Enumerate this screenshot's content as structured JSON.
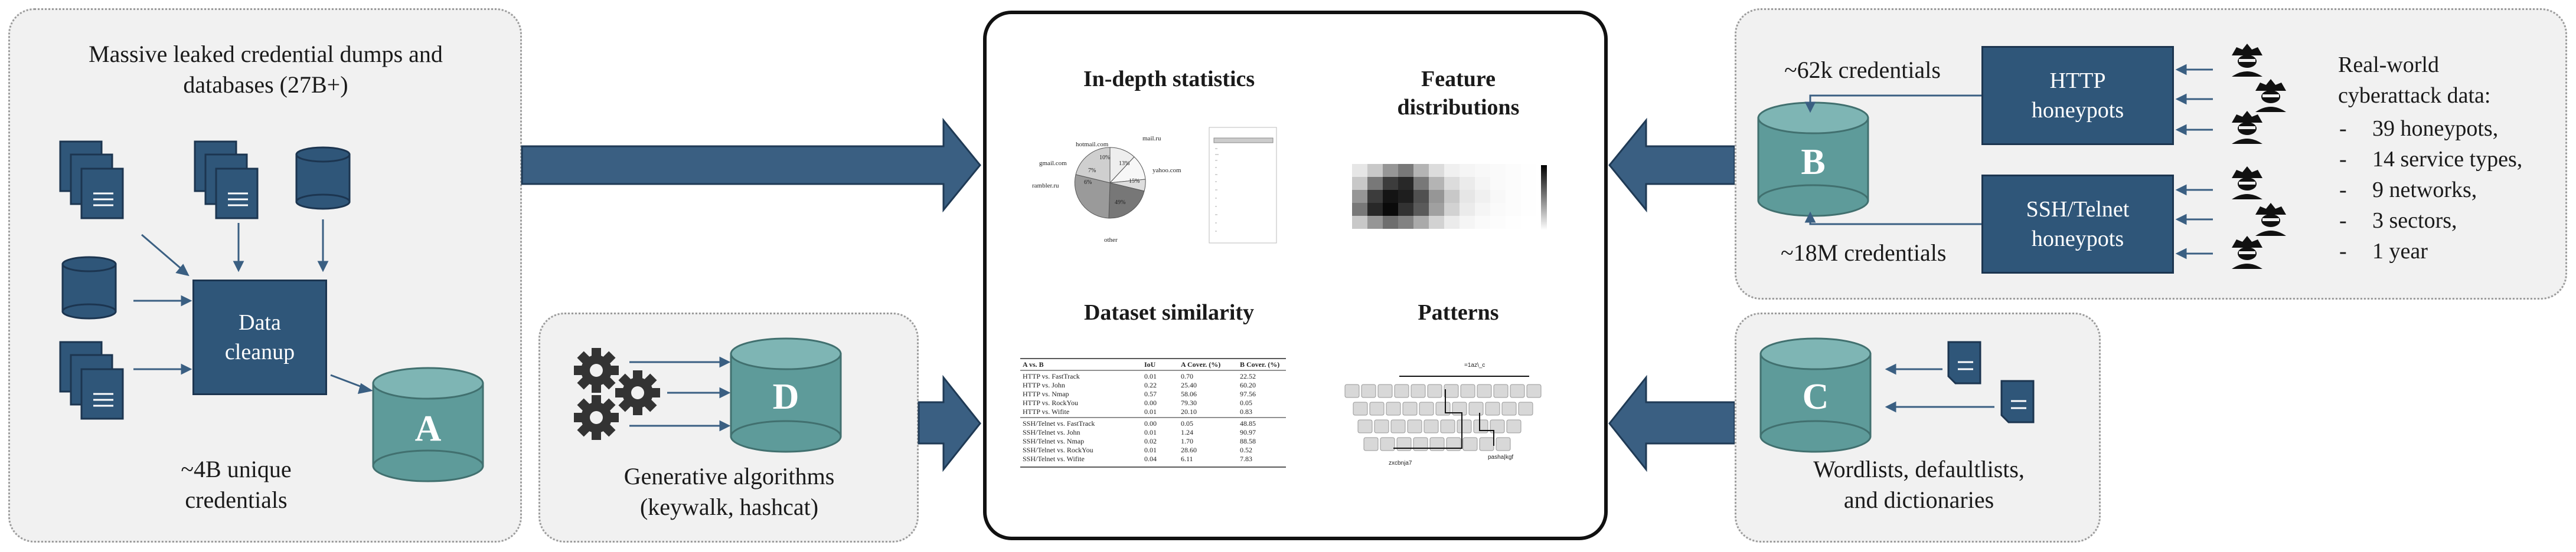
{
  "sources_panel": {
    "title_line1": "Massive leaked credential dumps and",
    "title_line2": "databases (27B+)",
    "cleanup_line1": "Data",
    "cleanup_line2": "cleanup",
    "db_letter": "A",
    "unique_line1": "~4B unique",
    "unique_line2": "credentials"
  },
  "generative_panel": {
    "db_letter": "D",
    "caption_line1": "Generative algorithms",
    "caption_line2": "(keywalk, hashcat)"
  },
  "center": {
    "stats_title": "In-depth statistics",
    "feature_title_line1": "Feature",
    "feature_title_line2": "distributions",
    "similarity_title": "Dataset similarity",
    "patterns_title": "Patterns",
    "pie_labels": [
      "hotmail.com",
      "mail.ru",
      "gmail.com",
      "yahoo.com",
      "rambler.ru",
      "other"
    ],
    "pie_pcts": [
      "10%",
      "13%",
      "7%",
      "15%",
      "6%",
      "49%"
    ],
    "table": {
      "headers": [
        "A vs. B",
        "IoU",
        "A Cover. (%)",
        "B Cover. (%)"
      ],
      "group1": [
        [
          "HTTP vs. FastTrack",
          "0.01",
          "0.70",
          "22.52"
        ],
        [
          "HTTP vs. John",
          "0.22",
          "25.40",
          "60.20"
        ],
        [
          "HTTP vs. Nmap",
          "0.57",
          "58.06",
          "97.56"
        ],
        [
          "HTTP vs. RockYou",
          "0.00",
          "79.30",
          "0.05"
        ],
        [
          "HTTP vs. Wifite",
          "0.01",
          "20.10",
          "0.83"
        ]
      ],
      "group2": [
        [
          "SSH/Telnet vs. FastTrack",
          "0.00",
          "0.05",
          "48.85"
        ],
        [
          "SSH/Telnet vs. John",
          "0.01",
          "1.24",
          "90.97"
        ],
        [
          "SSH/Telnet vs. Nmap",
          "0.02",
          "1.70",
          "88.58"
        ],
        [
          "SSH/Telnet vs. RockYou",
          "0.01",
          "28.60",
          "0.52"
        ],
        [
          "SSH/Telnet vs. Wifite",
          "0.04",
          "6.11",
          "7.83"
        ]
      ]
    },
    "keyboard_top_label": "=1az\\_c",
    "keyboard_bottom_left": "zxcbnja7",
    "keyboard_bottom_right": "pasha|kgf"
  },
  "honeypot_panel": {
    "http_count": "~62k credentials",
    "ssh_count": "~18M credentials",
    "db_letter": "B",
    "http_box_line1": "HTTP",
    "http_box_line2": "honeypots",
    "ssh_box_line1": "SSH/Telnet",
    "ssh_box_line2": "honeypots",
    "rw_title_line1": "Real-world",
    "rw_title_line2": "cyberattack data:",
    "rw_items": [
      "39 honeypots,",
      "14 service types,",
      "9 networks,",
      "3 sectors,",
      "1 year"
    ],
    "dash": "-"
  },
  "wordlist_panel": {
    "db_letter": "C",
    "caption_line1": "Wordlists, defaultlists,",
    "caption_line2": "and dictionaries"
  },
  "colors": {
    "box_fill": "#2f5679",
    "cylinder_fill": "#5e9b9a",
    "arrow_fill": "#3a5f82",
    "panel_bg": "#f1f1f1"
  }
}
